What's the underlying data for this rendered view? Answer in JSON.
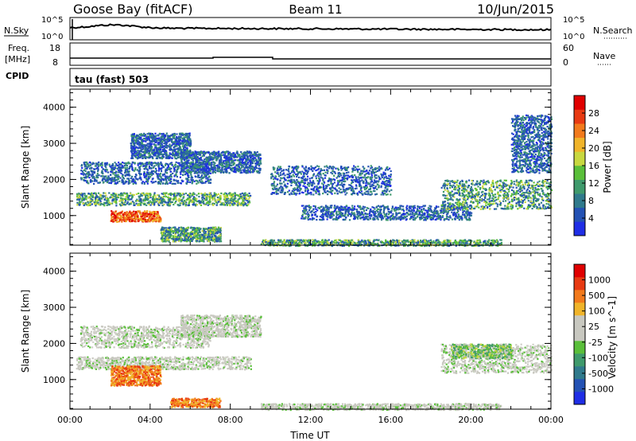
{
  "header": {
    "station": "Goose Bay (fitACF)",
    "beam": "Beam 11",
    "date": "10/Jun/2015"
  },
  "panels": {
    "nsky_label": "N.Sky",
    "nsearch_label": "N.Search",
    "freq_label": "Freq.",
    "freq_unit": "[MHz]",
    "nave_label": "Nave",
    "cpid_label": "CPID",
    "cpid_value": "tau (fast) 503",
    "noise_ticks_left": [
      "10^5",
      "10^0"
    ],
    "noise_ticks_right": [
      "10^5",
      "10^0"
    ],
    "freq_ticks": [
      "18",
      "8"
    ],
    "nave_ticks": [
      "60",
      "0"
    ]
  },
  "chart_data": [
    {
      "type": "heatmap",
      "title": "",
      "xlabel": "",
      "ylabel": "Slant Range [km]",
      "xlim": [
        0,
        24
      ],
      "ylim": [
        180,
        4500
      ],
      "x_ticks": [
        "00:00",
        "04:00",
        "08:00",
        "12:00",
        "16:00",
        "20:00",
        "00:00"
      ],
      "y_ticks": [
        1000,
        2000,
        3000,
        4000
      ],
      "colorbar": {
        "label": "Power [dB]",
        "ticks": [
          4,
          8,
          12,
          16,
          20,
          24,
          28
        ],
        "colors": [
          "#1f2ee6",
          "#2452b4",
          "#307a8c",
          "#3f9a6c",
          "#5abf3a",
          "#c8d840",
          "#f0b42a",
          "#f27a1c",
          "#e83a12",
          "#e00000"
        ]
      },
      "regions": [
        {
          "t0": 0.3,
          "t1": 9.0,
          "r0": 1300,
          "r1": 1650,
          "level": "mid"
        },
        {
          "t0": 0.5,
          "t1": 7.0,
          "r0": 1900,
          "r1": 2500,
          "level": "low"
        },
        {
          "t0": 3.0,
          "t1": 6.0,
          "r0": 2600,
          "r1": 3300,
          "level": "low"
        },
        {
          "t0": 5.5,
          "t1": 9.5,
          "r0": 2200,
          "r1": 2800,
          "level": "low"
        },
        {
          "t0": 2.0,
          "t1": 4.5,
          "r0": 850,
          "r1": 1150,
          "level": "high"
        },
        {
          "t0": 4.5,
          "t1": 7.5,
          "r0": 300,
          "r1": 700,
          "level": "mid"
        },
        {
          "t0": 9.5,
          "t1": 21.5,
          "r0": 180,
          "r1": 350,
          "level": "mid"
        },
        {
          "t0": 11.5,
          "t1": 20.0,
          "r0": 900,
          "r1": 1300,
          "level": "low"
        },
        {
          "t0": 10.0,
          "t1": 16.0,
          "r0": 1600,
          "r1": 2400,
          "level": "low"
        },
        {
          "t0": 18.5,
          "t1": 24.0,
          "r0": 1200,
          "r1": 2000,
          "level": "mid"
        },
        {
          "t0": 22.0,
          "t1": 24.0,
          "r0": 2200,
          "r1": 3800,
          "level": "low"
        }
      ]
    },
    {
      "type": "heatmap",
      "title": "",
      "xlabel": "Time UT",
      "ylabel": "Slant Range [km]",
      "xlim": [
        0,
        24
      ],
      "ylim": [
        180,
        4500
      ],
      "x_ticks": [
        "00:00",
        "04:00",
        "08:00",
        "12:00",
        "16:00",
        "20:00",
        "00:00"
      ],
      "y_ticks": [
        1000,
        2000,
        3000,
        4000
      ],
      "colorbar": {
        "label": "Velocity [m s^-1]",
        "ticks": [
          "1000",
          "500",
          "100",
          "25",
          "-25",
          "-100",
          "-500",
          "-1000"
        ],
        "colors": [
          "#1f2ee6",
          "#2452b4",
          "#307a8c",
          "#3f9a6c",
          "#5abf3a",
          "#c8c8c0",
          "#c8c8c0",
          "#f0b42a",
          "#f27a1c",
          "#e83a12",
          "#e00000"
        ]
      },
      "regions": [
        {
          "t0": 0.3,
          "t1": 9.0,
          "r0": 1300,
          "r1": 1650,
          "level": "gray"
        },
        {
          "t0": 0.5,
          "t1": 7.0,
          "r0": 1900,
          "r1": 2500,
          "level": "gray"
        },
        {
          "t0": 5.5,
          "t1": 9.5,
          "r0": 2200,
          "r1": 2800,
          "level": "gray"
        },
        {
          "t0": 2.0,
          "t1": 4.5,
          "r0": 850,
          "r1": 1400,
          "level": "orange"
        },
        {
          "t0": 5.0,
          "t1": 7.5,
          "r0": 250,
          "r1": 500,
          "level": "orange"
        },
        {
          "t0": 9.5,
          "t1": 21.5,
          "r0": 180,
          "r1": 350,
          "level": "gray"
        },
        {
          "t0": 18.5,
          "t1": 24.0,
          "r0": 1200,
          "r1": 2000,
          "level": "gray"
        },
        {
          "t0": 19.0,
          "t1": 22.0,
          "r0": 1600,
          "r1": 2000,
          "level": "green"
        }
      ]
    }
  ]
}
